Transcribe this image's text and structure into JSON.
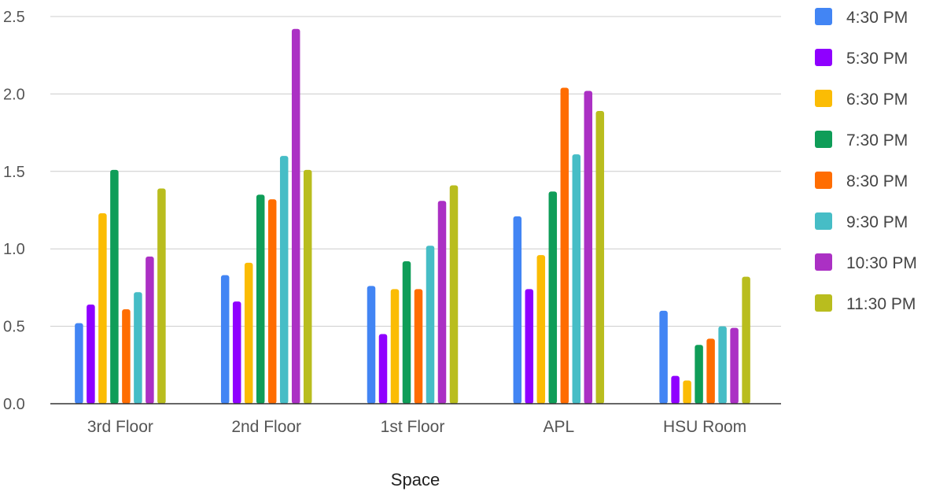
{
  "chart_data": {
    "type": "bar",
    "title": "",
    "xlabel": "Space",
    "ylabel": "",
    "ylim": [
      0,
      2.5
    ],
    "yticks": [
      "0.0",
      "0.5",
      "1.0",
      "1.5",
      "2.0",
      "2.5"
    ],
    "grid": true,
    "legend_position": "right",
    "categories": [
      "3rd Floor",
      "2nd Floor",
      "1st Floor",
      "APL",
      "HSU Room"
    ],
    "series": [
      {
        "name": "4:30 PM",
        "color": "#4285F4",
        "values": [
          0.52,
          0.83,
          0.76,
          1.21,
          0.6
        ]
      },
      {
        "name": "5:30 PM",
        "color": "#8F00FF",
        "values": [
          0.64,
          0.66,
          0.45,
          0.74,
          0.18
        ]
      },
      {
        "name": "6:30 PM",
        "color": "#FBBC04",
        "values": [
          1.23,
          0.91,
          0.74,
          0.96,
          0.15
        ]
      },
      {
        "name": "7:30 PM",
        "color": "#0F9D58",
        "values": [
          1.51,
          1.35,
          0.92,
          1.37,
          0.38
        ]
      },
      {
        "name": "8:30 PM",
        "color": "#FF6D01",
        "values": [
          0.61,
          1.32,
          0.74,
          2.04,
          0.42
        ]
      },
      {
        "name": "9:30 PM",
        "color": "#46BDC6",
        "values": [
          0.72,
          1.6,
          1.02,
          1.61,
          0.5
        ]
      },
      {
        "name": "10:30 PM",
        "color": "#AB30C4",
        "values": [
          0.95,
          2.42,
          1.31,
          2.02,
          0.49
        ]
      },
      {
        "name": "11:30 PM",
        "color": "#B9BD1E",
        "values": [
          1.39,
          1.51,
          1.41,
          1.89,
          0.82
        ]
      }
    ]
  }
}
